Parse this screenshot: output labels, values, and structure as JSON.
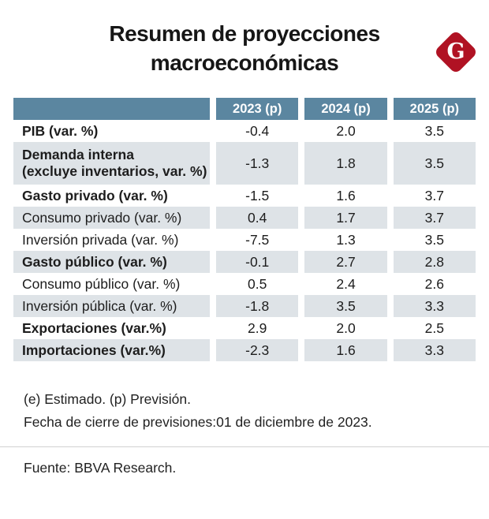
{
  "title": "Resumen de proyecciones macroeconómicas",
  "logo": {
    "letter": "G"
  },
  "colors": {
    "header_bg": "#5b86a0",
    "shaded_row": "#dee3e7",
    "accent_red": "#b01223"
  },
  "table": {
    "columns": [
      "2023 (p)",
      "2024 (p)",
      "2025 (p)"
    ],
    "rows": [
      {
        "label": "PIB (var. %)",
        "bold": true,
        "values": [
          "-0.4",
          "2.0",
          "3.5"
        ]
      },
      {
        "label": "Demanda interna",
        "label_line2": "(excluye inventarios, var. %)",
        "bold": true,
        "values": [
          "-1.3",
          "1.8",
          "3.5"
        ]
      },
      {
        "label": "Gasto privado (var. %)",
        "bold": true,
        "values": [
          "-1.5",
          "1.6",
          "3.7"
        ]
      },
      {
        "label": "Consumo privado (var. %)",
        "bold": false,
        "values": [
          "0.4",
          "1.7",
          "3.7"
        ]
      },
      {
        "label": "Inversión privada (var. %)",
        "bold": false,
        "values": [
          "-7.5",
          "1.3",
          "3.5"
        ]
      },
      {
        "label": "Gasto público (var. %)",
        "bold": true,
        "values": [
          "-0.1",
          "2.7",
          "2.8"
        ]
      },
      {
        "label": "Consumo público (var. %)",
        "bold": false,
        "values": [
          "0.5",
          "2.4",
          "2.6"
        ]
      },
      {
        "label": "Inversión pública (var. %)",
        "bold": false,
        "values": [
          "-1.8",
          "3.5",
          "3.3"
        ]
      },
      {
        "label": "Exportaciones (var.%)",
        "bold": true,
        "values": [
          "2.9",
          "2.0",
          "2.5"
        ]
      },
      {
        "label": "Importaciones (var.%)",
        "bold": true,
        "values": [
          "-2.3",
          "1.6",
          "3.3"
        ]
      }
    ]
  },
  "notes": {
    "line1": "(e) Estimado. (p) Previsión.",
    "line2": "Fecha de cierre de previsiones:01 de diciembre de 2023."
  },
  "source": "Fuente: BBVA Research.",
  "chart_data": {
    "type": "table",
    "title": "Resumen de proyecciones macroeconómicas",
    "categories": [
      "2023 (p)",
      "2024 (p)",
      "2025 (p)"
    ],
    "series": [
      {
        "name": "PIB (var. %)",
        "values": [
          -0.4,
          2.0,
          3.5
        ]
      },
      {
        "name": "Demanda interna (excluye inventarios, var. %)",
        "values": [
          -1.3,
          1.8,
          3.5
        ]
      },
      {
        "name": "Gasto privado (var. %)",
        "values": [
          -1.5,
          1.6,
          3.7
        ]
      },
      {
        "name": "Consumo privado (var. %)",
        "values": [
          0.4,
          1.7,
          3.7
        ]
      },
      {
        "name": "Inversión privada (var. %)",
        "values": [
          -7.5,
          1.3,
          3.5
        ]
      },
      {
        "name": "Gasto público (var. %)",
        "values": [
          -0.1,
          2.7,
          2.8
        ]
      },
      {
        "name": "Consumo público (var. %)",
        "values": [
          0.5,
          2.4,
          2.6
        ]
      },
      {
        "name": "Inversión pública (var. %)",
        "values": [
          -1.8,
          3.5,
          3.3
        ]
      },
      {
        "name": "Exportaciones (var.%)",
        "values": [
          2.9,
          2.0,
          2.5
        ]
      },
      {
        "name": "Importaciones (var.%)",
        "values": [
          -2.3,
          1.6,
          3.3
        ]
      }
    ],
    "notes": [
      "(e) Estimado. (p) Previsión.",
      "Fecha de cierre de previsiones:01 de diciembre de 2023."
    ],
    "source": "Fuente: BBVA Research."
  }
}
